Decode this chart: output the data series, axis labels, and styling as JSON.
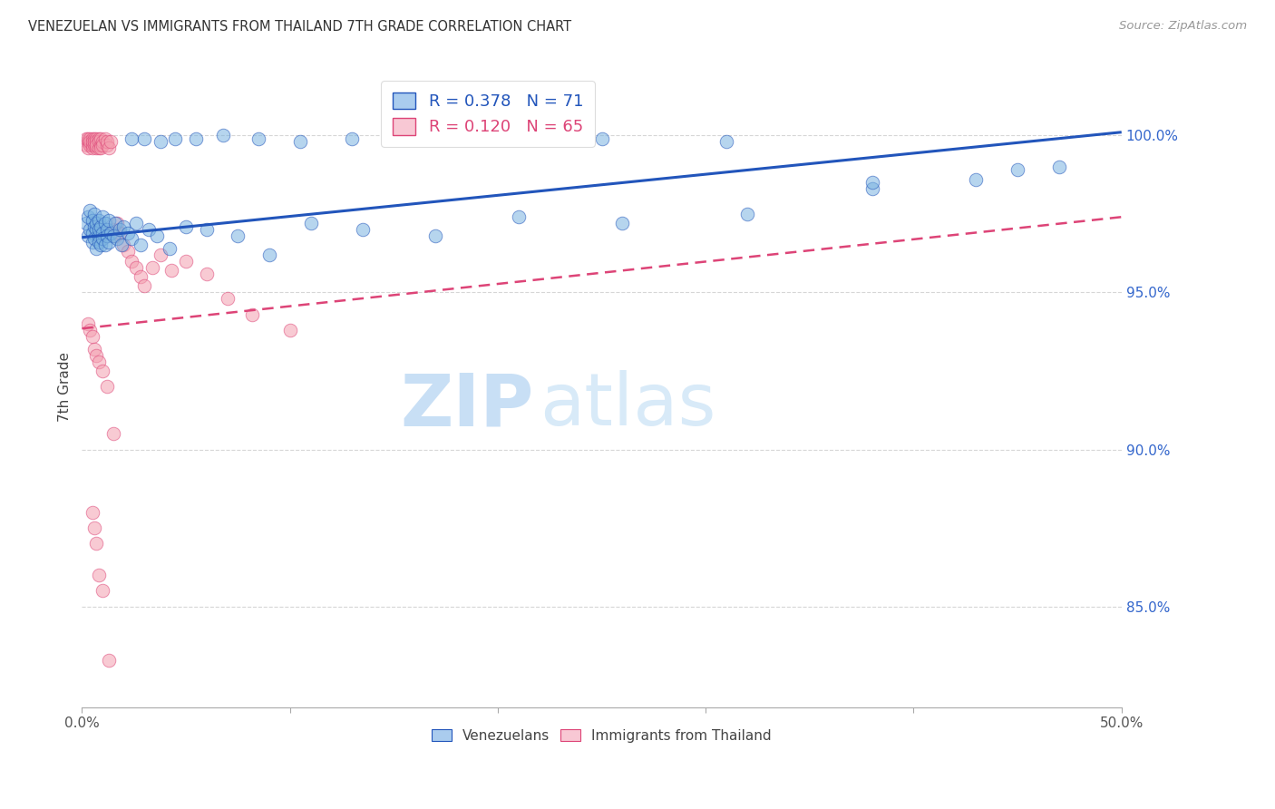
{
  "title": "VENEZUELAN VS IMMIGRANTS FROM THAILAND 7TH GRADE CORRELATION CHART",
  "source": "Source: ZipAtlas.com",
  "ylabel": "7th Grade",
  "ytick_labels": [
    "100.0%",
    "95.0%",
    "90.0%",
    "85.0%"
  ],
  "ytick_values": [
    1.0,
    0.95,
    0.9,
    0.85
  ],
  "x_min": 0.0,
  "x_max": 0.5,
  "y_min": 0.818,
  "y_max": 1.022,
  "blue_color": "#7ab3e0",
  "pink_color": "#f4a0b0",
  "blue_line_color": "#2255bb",
  "pink_line_color": "#dd4477",
  "blue_fill_color": "#aaccee",
  "pink_fill_color": "#f8c8d4",
  "watermark_zip": "ZIP",
  "watermark_atlas": "atlas",
  "watermark_zip_color": "#c8dff5",
  "watermark_atlas_color": "#d8eaf8",
  "grid_color": "#cccccc",
  "legend_label_blue_r": "R = 0.378",
  "legend_label_blue_n": "N = 71",
  "legend_label_pink_r": "R = 0.120",
  "legend_label_pink_n": "N = 65",
  "blue_trend_x": [
    0.0,
    0.5
  ],
  "blue_trend_y": [
    0.9675,
    1.001
  ],
  "pink_trend_x": [
    0.0,
    0.5
  ],
  "pink_trend_y": [
    0.9385,
    0.974
  ],
  "blue_scatter_x": [
    0.002,
    0.003,
    0.003,
    0.004,
    0.004,
    0.005,
    0.005,
    0.005,
    0.006,
    0.006,
    0.006,
    0.007,
    0.007,
    0.007,
    0.008,
    0.008,
    0.008,
    0.008,
    0.009,
    0.009,
    0.01,
    0.01,
    0.01,
    0.011,
    0.011,
    0.012,
    0.012,
    0.013,
    0.013,
    0.014,
    0.015,
    0.016,
    0.017,
    0.018,
    0.019,
    0.02,
    0.022,
    0.024,
    0.026,
    0.028,
    0.032,
    0.036,
    0.042,
    0.05,
    0.06,
    0.075,
    0.09,
    0.11,
    0.135,
    0.17,
    0.21,
    0.26,
    0.32,
    0.38,
    0.43,
    0.47,
    0.024,
    0.03,
    0.038,
    0.045,
    0.055,
    0.068,
    0.085,
    0.105,
    0.13,
    0.16,
    0.2,
    0.25,
    0.31,
    0.38,
    0.45
  ],
  "blue_scatter_y": [
    0.972,
    0.968,
    0.974,
    0.97,
    0.976,
    0.969,
    0.973,
    0.966,
    0.971,
    0.967,
    0.975,
    0.97,
    0.964,
    0.972,
    0.968,
    0.973,
    0.966,
    0.97,
    0.965,
    0.971,
    0.969,
    0.974,
    0.967,
    0.972,
    0.965,
    0.97,
    0.968,
    0.966,
    0.973,
    0.969,
    0.968,
    0.972,
    0.967,
    0.97,
    0.965,
    0.971,
    0.969,
    0.967,
    0.972,
    0.965,
    0.97,
    0.968,
    0.964,
    0.971,
    0.97,
    0.968,
    0.962,
    0.972,
    0.97,
    0.968,
    0.974,
    0.972,
    0.975,
    0.983,
    0.986,
    0.99,
    0.999,
    0.999,
    0.998,
    0.999,
    0.999,
    1.0,
    0.999,
    0.998,
    0.999,
    0.999,
    0.999,
    0.999,
    0.998,
    0.985,
    0.989
  ],
  "pink_scatter_x": [
    0.002,
    0.002,
    0.003,
    0.003,
    0.003,
    0.004,
    0.004,
    0.004,
    0.005,
    0.005,
    0.005,
    0.005,
    0.006,
    0.006,
    0.006,
    0.007,
    0.007,
    0.007,
    0.007,
    0.008,
    0.008,
    0.008,
    0.009,
    0.009,
    0.009,
    0.01,
    0.01,
    0.011,
    0.012,
    0.012,
    0.013,
    0.014,
    0.015,
    0.016,
    0.017,
    0.018,
    0.02,
    0.022,
    0.024,
    0.026,
    0.028,
    0.03,
    0.034,
    0.038,
    0.043,
    0.05,
    0.06,
    0.07,
    0.082,
    0.1,
    0.003,
    0.004,
    0.005,
    0.006,
    0.007,
    0.008,
    0.01,
    0.012,
    0.015,
    0.005,
    0.006,
    0.007,
    0.008,
    0.01,
    0.013
  ],
  "pink_scatter_y": [
    0.999,
    0.997,
    0.998,
    0.996,
    0.999,
    0.997,
    0.999,
    0.998,
    0.996,
    0.999,
    0.997,
    0.998,
    0.999,
    0.997,
    0.998,
    0.999,
    0.996,
    0.998,
    0.997,
    0.999,
    0.996,
    0.998,
    0.997,
    0.999,
    0.996,
    0.998,
    0.997,
    0.999,
    0.997,
    0.998,
    0.996,
    0.998,
    0.97,
    0.968,
    0.972,
    0.969,
    0.965,
    0.963,
    0.96,
    0.958,
    0.955,
    0.952,
    0.958,
    0.962,
    0.957,
    0.96,
    0.956,
    0.948,
    0.943,
    0.938,
    0.94,
    0.938,
    0.936,
    0.932,
    0.93,
    0.928,
    0.925,
    0.92,
    0.905,
    0.88,
    0.875,
    0.87,
    0.86,
    0.855,
    0.833
  ]
}
